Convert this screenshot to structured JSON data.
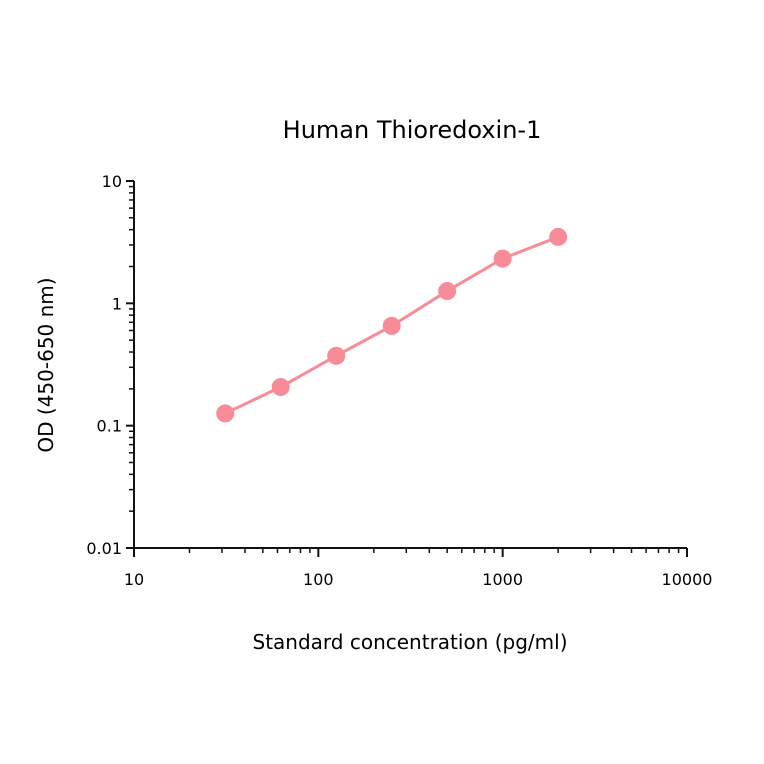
{
  "chart_data": {
    "type": "line",
    "title": "Human Thioredoxin-1",
    "xlabel": "Standard concentration (pg/ml)",
    "ylabel": "OD (450-650 nm)",
    "xscale": "log",
    "yscale": "log",
    "xlim": [
      10,
      10000
    ],
    "ylim": [
      0.01,
      10
    ],
    "x_ticks": [
      "10",
      "100",
      "1000",
      "10000"
    ],
    "y_ticks": [
      "0.01",
      "0.1",
      "1",
      "10"
    ],
    "grid": false,
    "legend": null,
    "series": [
      {
        "name": "Human Thioredoxin-1",
        "color": "#f78b98",
        "marker": "circle",
        "x": [
          31.25,
          62.5,
          125,
          250,
          500,
          1000,
          2000
        ],
        "values": [
          0.126,
          0.207,
          0.372,
          0.654,
          1.26,
          2.32,
          3.49
        ]
      }
    ]
  }
}
